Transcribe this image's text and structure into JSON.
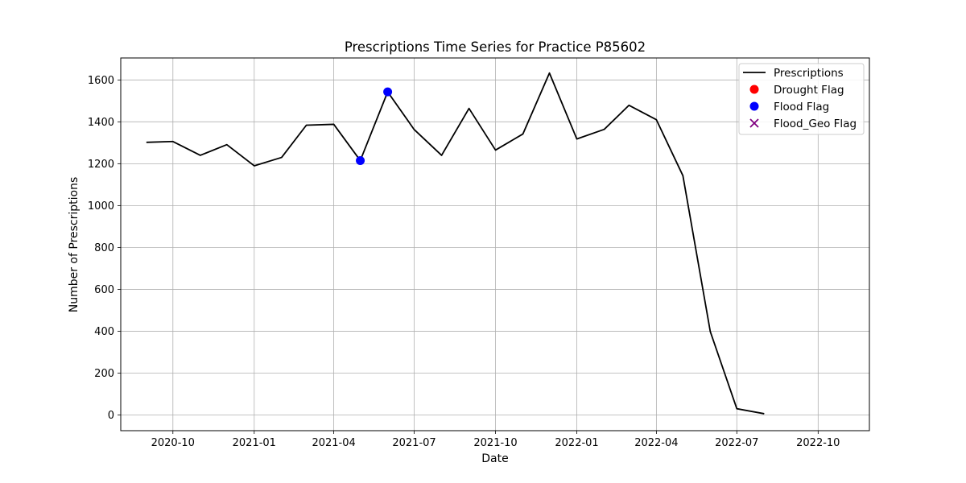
{
  "chart_data": {
    "type": "line",
    "title": "Prescriptions Time Series for Practice P85602",
    "xlabel": "Date",
    "ylabel": "Number of Prescriptions",
    "x_tick_labels": [
      "2020-10",
      "2021-01",
      "2021-04",
      "2021-07",
      "2021-10",
      "2022-01",
      "2022-04",
      "2022-07",
      "2022-10"
    ],
    "y_tick_labels": [
      "0",
      "200",
      "400",
      "600",
      "800",
      "1000",
      "1200",
      "1400",
      "1600"
    ],
    "xlim": [
      "2020-08-03",
      "2022-11-28"
    ],
    "ylim": [
      -75,
      1705
    ],
    "grid": true,
    "legend_position": "top-right",
    "series": [
      {
        "name": "Prescriptions",
        "color": "#000000",
        "points": [
          {
            "x": "2020-09-01",
            "y": 1302
          },
          {
            "x": "2020-10-01",
            "y": 1306
          },
          {
            "x": "2020-11-01",
            "y": 1240
          },
          {
            "x": "2020-12-01",
            "y": 1291
          },
          {
            "x": "2021-01-01",
            "y": 1190
          },
          {
            "x": "2021-02-01",
            "y": 1230
          },
          {
            "x": "2021-03-01",
            "y": 1384
          },
          {
            "x": "2021-04-01",
            "y": 1388
          },
          {
            "x": "2021-05-01",
            "y": 1215
          },
          {
            "x": "2021-06-01",
            "y": 1543
          },
          {
            "x": "2021-07-01",
            "y": 1363
          },
          {
            "x": "2021-08-01",
            "y": 1240
          },
          {
            "x": "2021-09-01",
            "y": 1464
          },
          {
            "x": "2021-10-01",
            "y": 1265
          },
          {
            "x": "2021-11-01",
            "y": 1342
          },
          {
            "x": "2021-12-01",
            "y": 1633
          },
          {
            "x": "2022-01-01",
            "y": 1318
          },
          {
            "x": "2022-02-01",
            "y": 1364
          },
          {
            "x": "2022-03-01",
            "y": 1479
          },
          {
            "x": "2022-04-01",
            "y": 1410
          },
          {
            "x": "2022-05-01",
            "y": 1143
          },
          {
            "x": "2022-06-01",
            "y": 398
          },
          {
            "x": "2022-07-01",
            "y": 30
          },
          {
            "x": "2022-08-01",
            "y": 6
          }
        ]
      },
      {
        "name": "Drought Flag",
        "color": "#ff0000",
        "marker": "circle",
        "points": []
      },
      {
        "name": "Flood Flag",
        "color": "#0000ff",
        "marker": "circle",
        "points": [
          {
            "x": "2021-05-01",
            "y": 1215
          },
          {
            "x": "2021-06-01",
            "y": 1543
          }
        ]
      },
      {
        "name": "Flood_Geo Flag",
        "color": "#800080",
        "marker": "x",
        "points": []
      }
    ]
  }
}
